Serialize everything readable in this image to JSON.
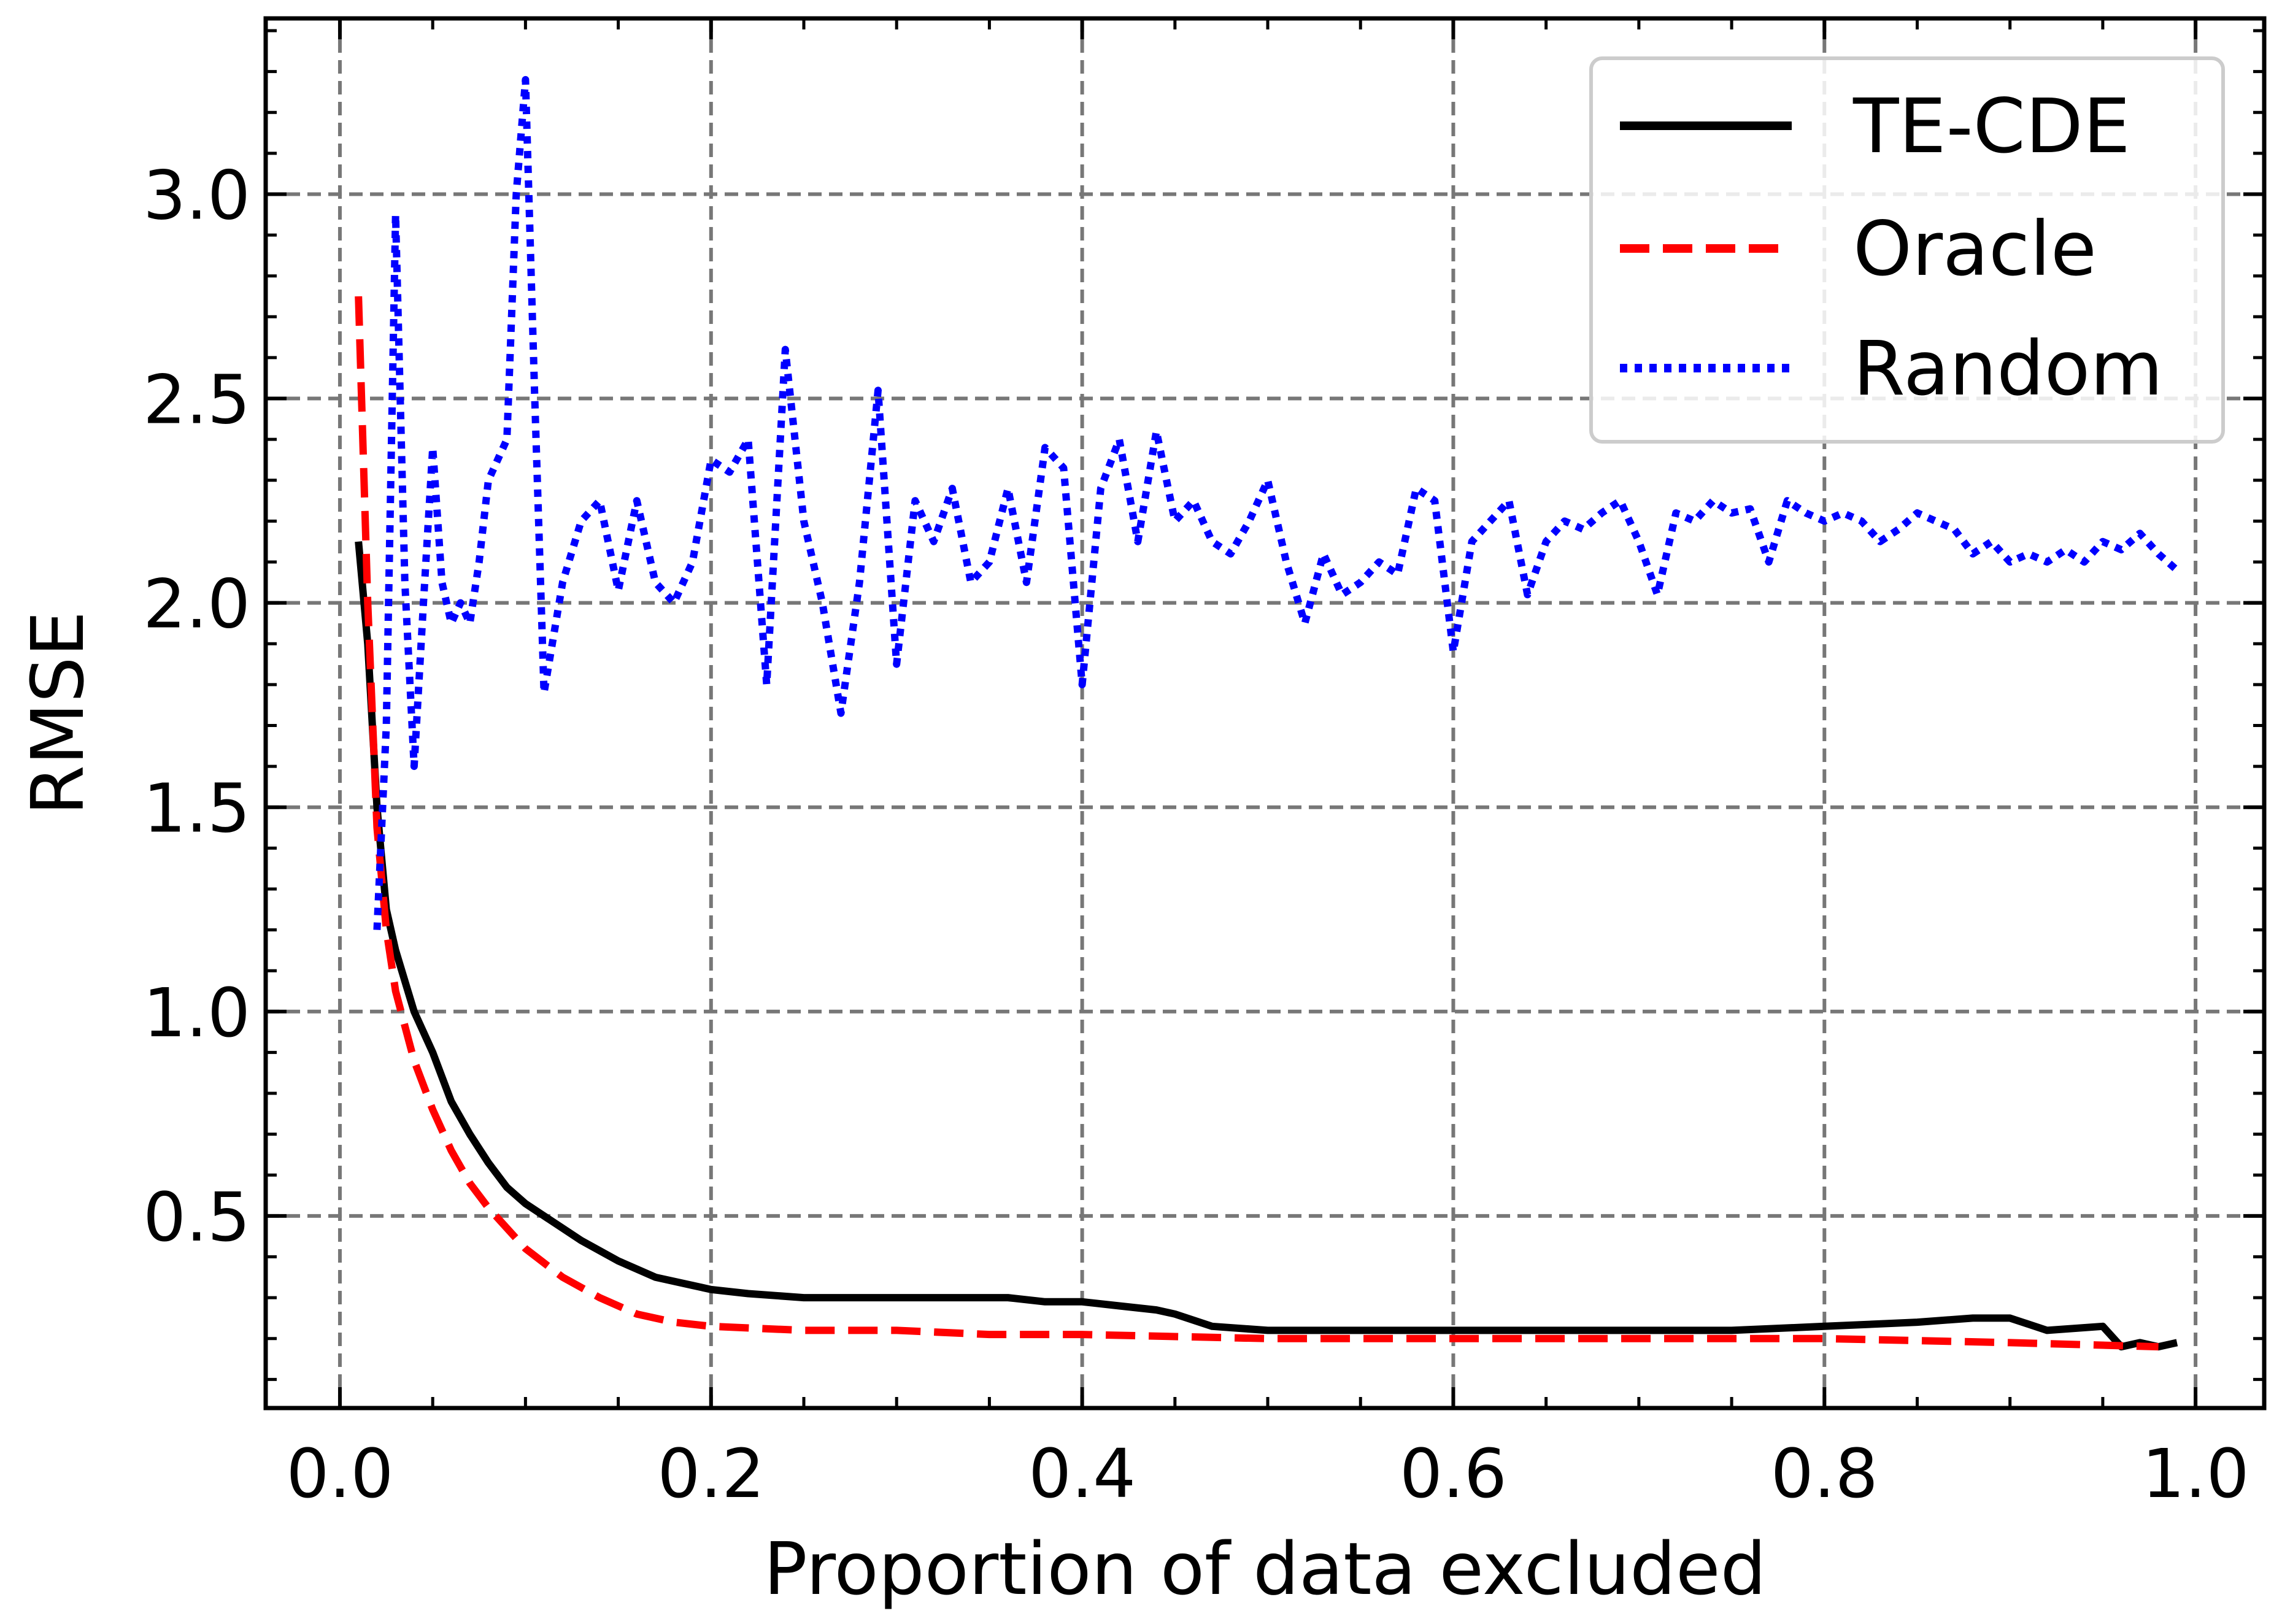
{
  "chart_data": {
    "type": "line",
    "title": "",
    "xlabel": "Proportion of data excluded",
    "ylabel": "RMSE",
    "xlim": [
      -0.04,
      1.037
    ],
    "ylim": [
      0.03,
      3.43
    ],
    "xticks": [
      0.0,
      0.2,
      0.4,
      0.6,
      0.8,
      1.0
    ],
    "xtick_labels": [
      "0.0",
      "0.2",
      "0.4",
      "0.6",
      "0.8",
      "1.0"
    ],
    "yticks": [
      0.5,
      1.0,
      1.5,
      2.0,
      2.5,
      3.0
    ],
    "ytick_labels": [
      "0.5",
      "1.0",
      "1.5",
      "2.0",
      "2.5",
      "3.0"
    ],
    "grid": true,
    "legend_position": "top-right",
    "series": [
      {
        "name": "TE-CDE",
        "color": "#000000",
        "style": "solid",
        "x": [
          0.01,
          0.015,
          0.02,
          0.025,
          0.03,
          0.04,
          0.05,
          0.06,
          0.07,
          0.08,
          0.09,
          0.1,
          0.11,
          0.12,
          0.13,
          0.15,
          0.17,
          0.19,
          0.2,
          0.22,
          0.25,
          0.3,
          0.33,
          0.36,
          0.38,
          0.4,
          0.42,
          0.44,
          0.45,
          0.47,
          0.5,
          0.55,
          0.6,
          0.65,
          0.7,
          0.75,
          0.8,
          0.85,
          0.88,
          0.9,
          0.92,
          0.95,
          0.96,
          0.97,
          0.98,
          0.99
        ],
        "y": [
          2.15,
          1.9,
          1.5,
          1.25,
          1.15,
          1.0,
          0.9,
          0.78,
          0.7,
          0.63,
          0.57,
          0.53,
          0.5,
          0.47,
          0.44,
          0.39,
          0.35,
          0.33,
          0.32,
          0.31,
          0.3,
          0.3,
          0.3,
          0.3,
          0.29,
          0.29,
          0.28,
          0.27,
          0.26,
          0.23,
          0.22,
          0.22,
          0.22,
          0.22,
          0.22,
          0.22,
          0.23,
          0.24,
          0.25,
          0.25,
          0.22,
          0.23,
          0.18,
          0.19,
          0.18,
          0.19
        ]
      },
      {
        "name": "Oracle",
        "color": "#ff0000",
        "style": "dashed",
        "x": [
          0.01,
          0.015,
          0.02,
          0.025,
          0.03,
          0.04,
          0.05,
          0.06,
          0.07,
          0.08,
          0.1,
          0.12,
          0.14,
          0.16,
          0.18,
          0.2,
          0.25,
          0.3,
          0.35,
          0.4,
          0.5,
          0.6,
          0.7,
          0.8,
          0.9,
          0.98
        ],
        "y": [
          2.75,
          2.0,
          1.45,
          1.2,
          1.05,
          0.88,
          0.76,
          0.66,
          0.58,
          0.52,
          0.42,
          0.35,
          0.3,
          0.26,
          0.24,
          0.23,
          0.22,
          0.22,
          0.21,
          0.21,
          0.2,
          0.2,
          0.2,
          0.2,
          0.19,
          0.18
        ]
      },
      {
        "name": "Random",
        "color": "#0000ff",
        "style": "dotted",
        "x": [
          0.02,
          0.025,
          0.03,
          0.035,
          0.04,
          0.045,
          0.05,
          0.055,
          0.06,
          0.065,
          0.07,
          0.075,
          0.08,
          0.085,
          0.09,
          0.095,
          0.1,
          0.105,
          0.11,
          0.12,
          0.13,
          0.14,
          0.15,
          0.16,
          0.17,
          0.18,
          0.19,
          0.2,
          0.21,
          0.22,
          0.23,
          0.24,
          0.25,
          0.26,
          0.27,
          0.28,
          0.29,
          0.3,
          0.31,
          0.32,
          0.33,
          0.34,
          0.35,
          0.36,
          0.37,
          0.38,
          0.39,
          0.4,
          0.41,
          0.42,
          0.43,
          0.44,
          0.45,
          0.46,
          0.47,
          0.48,
          0.49,
          0.5,
          0.51,
          0.52,
          0.53,
          0.54,
          0.55,
          0.56,
          0.57,
          0.58,
          0.59,
          0.6,
          0.61,
          0.62,
          0.63,
          0.64,
          0.65,
          0.66,
          0.67,
          0.68,
          0.69,
          0.7,
          0.71,
          0.72,
          0.73,
          0.74,
          0.75,
          0.76,
          0.77,
          0.78,
          0.79,
          0.8,
          0.81,
          0.82,
          0.83,
          0.84,
          0.85,
          0.86,
          0.87,
          0.88,
          0.89,
          0.9,
          0.91,
          0.92,
          0.93,
          0.94,
          0.95,
          0.96,
          0.97,
          0.98,
          0.99
        ],
        "y": [
          1.2,
          1.7,
          2.95,
          2.05,
          1.6,
          2.0,
          2.38,
          2.05,
          1.95,
          2.0,
          1.95,
          2.1,
          2.3,
          2.35,
          2.4,
          3.0,
          3.28,
          2.5,
          1.78,
          2.05,
          2.2,
          2.25,
          2.03,
          2.25,
          2.05,
          2.0,
          2.1,
          2.35,
          2.32,
          2.4,
          1.8,
          2.62,
          2.2,
          2.0,
          1.73,
          2.05,
          2.52,
          1.85,
          2.25,
          2.15,
          2.28,
          2.05,
          2.1,
          2.28,
          2.05,
          2.38,
          2.33,
          1.8,
          2.28,
          2.4,
          2.15,
          2.42,
          2.2,
          2.25,
          2.15,
          2.12,
          2.2,
          2.3,
          2.1,
          1.95,
          2.12,
          2.02,
          2.05,
          2.1,
          2.07,
          2.28,
          2.25,
          1.88,
          2.15,
          2.2,
          2.25,
          2.02,
          2.15,
          2.2,
          2.18,
          2.22,
          2.25,
          2.15,
          2.02,
          2.22,
          2.2,
          2.25,
          2.22,
          2.23,
          2.1,
          2.25,
          2.22,
          2.2,
          2.22,
          2.2,
          2.15,
          2.18,
          2.22,
          2.2,
          2.18,
          2.12,
          2.15,
          2.1,
          2.12,
          2.1,
          2.13,
          2.1,
          2.15,
          2.13,
          2.17,
          2.12,
          2.08
        ]
      }
    ]
  }
}
